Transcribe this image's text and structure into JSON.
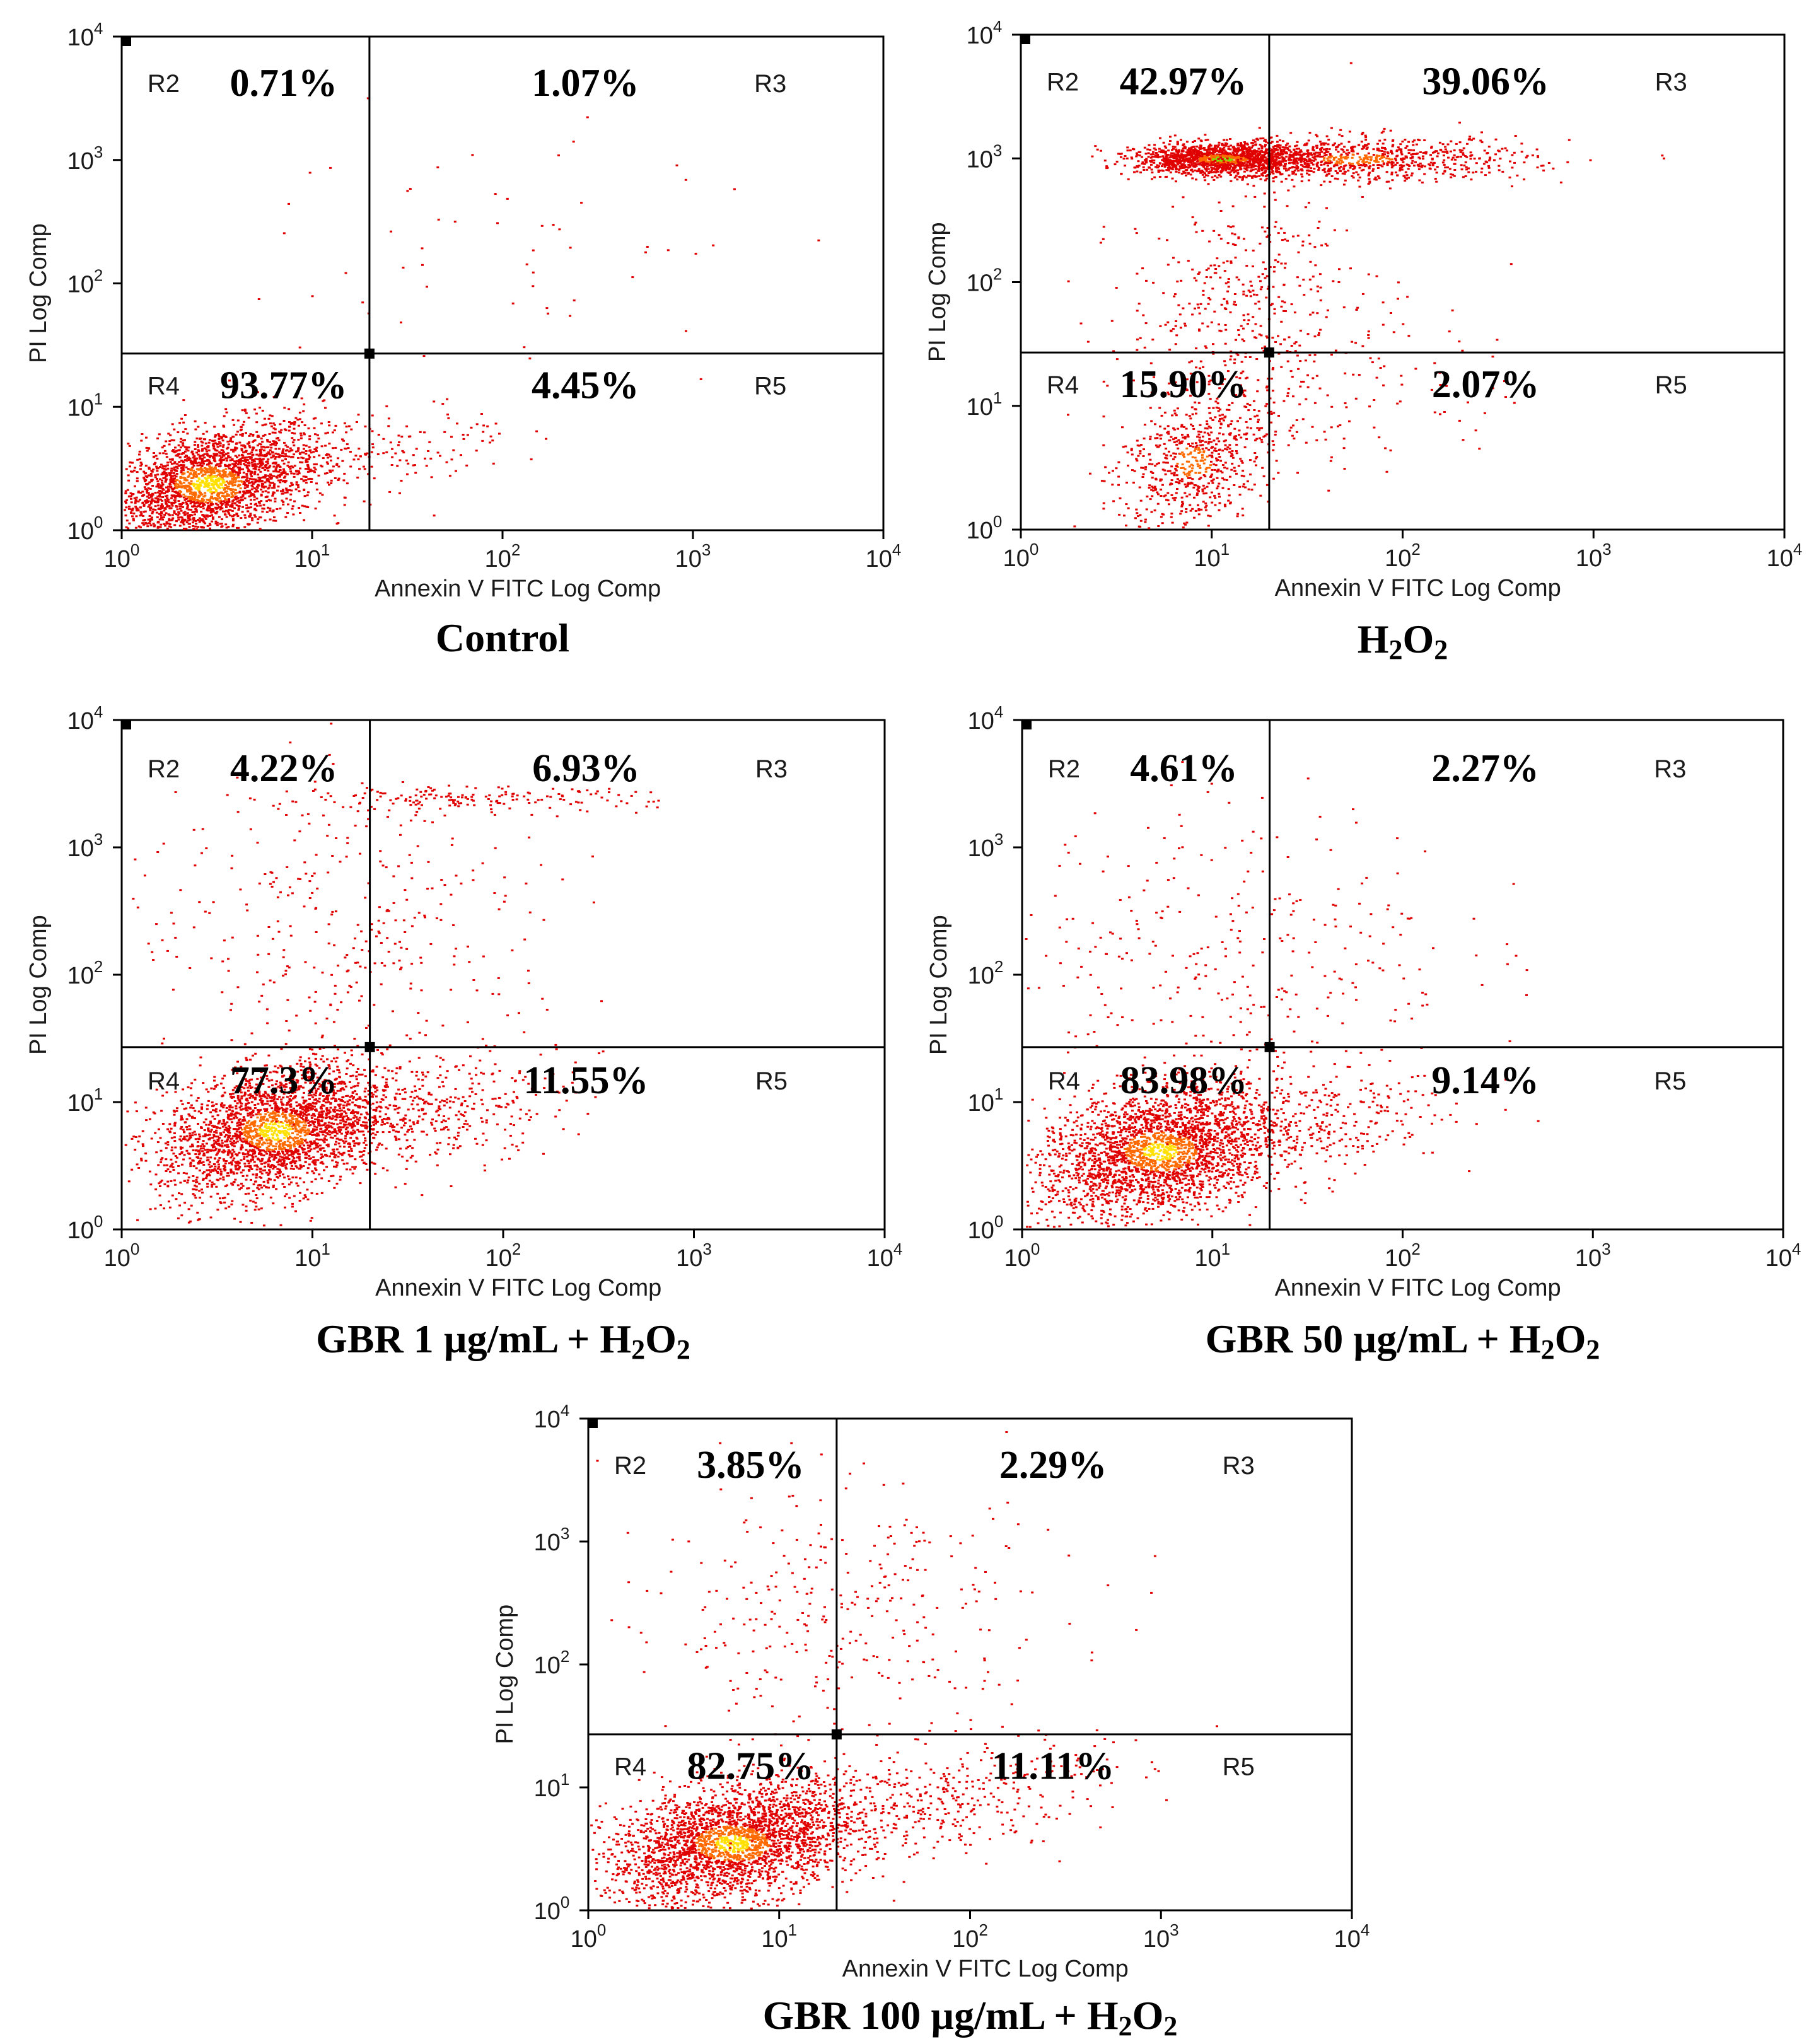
{
  "chart_data": [
    {
      "type": "scatter",
      "title": "Control",
      "xlabel": "Annexin V FITC Log Comp",
      "ylabel": "PI Log Comp",
      "xscale": "log",
      "yscale": "log",
      "xlim": [
        1,
        10000
      ],
      "ylim": [
        1,
        10000
      ],
      "x_ticks": [
        {
          "base": "10",
          "exp": "0"
        },
        {
          "base": "10",
          "exp": "1"
        },
        {
          "base": "10",
          "exp": "2"
        },
        {
          "base": "10",
          "exp": "3"
        },
        {
          "base": "10",
          "exp": "4"
        }
      ],
      "y_ticks": [
        {
          "base": "10",
          "exp": "0"
        },
        {
          "base": "10",
          "exp": "1"
        },
        {
          "base": "10",
          "exp": "2"
        },
        {
          "base": "10",
          "exp": "3"
        },
        {
          "base": "10",
          "exp": "4"
        }
      ],
      "gate": {
        "x": 20,
        "y": 27
      },
      "quadrants": [
        {
          "region": "R2",
          "percent": "0.71%"
        },
        {
          "region": "R3",
          "percent": "1.07%"
        },
        {
          "region": "R4",
          "percent": "93.77%"
        },
        {
          "region": "R5",
          "percent": "4.45%"
        }
      ]
    },
    {
      "type": "scatter",
      "title": "H2O2",
      "xlabel": "Annexin V FITC Log Comp",
      "ylabel": "PI Log Comp",
      "xscale": "log",
      "yscale": "log",
      "xlim": [
        1,
        10000
      ],
      "ylim": [
        1,
        10000
      ],
      "x_ticks": [
        {
          "base": "10",
          "exp": "0"
        },
        {
          "base": "10",
          "exp": "1"
        },
        {
          "base": "10",
          "exp": "2"
        },
        {
          "base": "10",
          "exp": "3"
        },
        {
          "base": "10",
          "exp": "4"
        }
      ],
      "y_ticks": [
        {
          "base": "10",
          "exp": "0"
        },
        {
          "base": "10",
          "exp": "1"
        },
        {
          "base": "10",
          "exp": "2"
        },
        {
          "base": "10",
          "exp": "3"
        },
        {
          "base": "10",
          "exp": "4"
        }
      ],
      "gate": {
        "x": 20,
        "y": 27
      },
      "quadrants": [
        {
          "region": "R2",
          "percent": "42.97%"
        },
        {
          "region": "R3",
          "percent": "39.06%"
        },
        {
          "region": "R4",
          "percent": "15.90%"
        },
        {
          "region": "R5",
          "percent": "2.07%"
        }
      ]
    },
    {
      "type": "scatter",
      "title": "GBR 1 µg/mL + H2O2",
      "xlabel": "Annexin V FITC Log Comp",
      "ylabel": "PI Log Comp",
      "xscale": "log",
      "yscale": "log",
      "xlim": [
        1,
        10000
      ],
      "ylim": [
        1,
        10000
      ],
      "x_ticks": [
        {
          "base": "10",
          "exp": "0"
        },
        {
          "base": "10",
          "exp": "1"
        },
        {
          "base": "10",
          "exp": "2"
        },
        {
          "base": "10",
          "exp": "3"
        },
        {
          "base": "10",
          "exp": "4"
        }
      ],
      "y_ticks": [
        {
          "base": "10",
          "exp": "0"
        },
        {
          "base": "10",
          "exp": "1"
        },
        {
          "base": "10",
          "exp": "2"
        },
        {
          "base": "10",
          "exp": "3"
        },
        {
          "base": "10",
          "exp": "4"
        }
      ],
      "gate": {
        "x": 20,
        "y": 27
      },
      "quadrants": [
        {
          "region": "R2",
          "percent": "4.22%"
        },
        {
          "region": "R3",
          "percent": "6.93%"
        },
        {
          "region": "R4",
          "percent": "77.3%"
        },
        {
          "region": "R5",
          "percent": "11.55%"
        }
      ]
    },
    {
      "type": "scatter",
      "title": "GBR 50 µg/mL + H2O2",
      "xlabel": "Annexin V FITC Log Comp",
      "ylabel": "PI Log Comp",
      "xscale": "log",
      "yscale": "log",
      "xlim": [
        1,
        10000
      ],
      "ylim": [
        1,
        10000
      ],
      "x_ticks": [
        {
          "base": "10",
          "exp": "0"
        },
        {
          "base": "10",
          "exp": "1"
        },
        {
          "base": "10",
          "exp": "2"
        },
        {
          "base": "10",
          "exp": "3"
        },
        {
          "base": "10",
          "exp": "4"
        }
      ],
      "y_ticks": [
        {
          "base": "10",
          "exp": "0"
        },
        {
          "base": "10",
          "exp": "1"
        },
        {
          "base": "10",
          "exp": "2"
        },
        {
          "base": "10",
          "exp": "3"
        },
        {
          "base": "10",
          "exp": "4"
        }
      ],
      "gate": {
        "x": 20,
        "y": 27
      },
      "quadrants": [
        {
          "region": "R2",
          "percent": "4.61%"
        },
        {
          "region": "R3",
          "percent": "2.27%"
        },
        {
          "region": "R4",
          "percent": "83.98%"
        },
        {
          "region": "R5",
          "percent": "9.14%"
        }
      ]
    },
    {
      "type": "scatter",
      "title": "GBR 100 µg/mL + H2O2",
      "xlabel": "Annexin V FITC Log Comp",
      "ylabel": "PI Log Comp",
      "xscale": "log",
      "yscale": "log",
      "xlim": [
        1,
        10000
      ],
      "ylim": [
        1,
        10000
      ],
      "x_ticks": [
        {
          "base": "10",
          "exp": "0"
        },
        {
          "base": "10",
          "exp": "1"
        },
        {
          "base": "10",
          "exp": "2"
        },
        {
          "base": "10",
          "exp": "3"
        },
        {
          "base": "10",
          "exp": "4"
        }
      ],
      "y_ticks": [
        {
          "base": "10",
          "exp": "0"
        },
        {
          "base": "10",
          "exp": "1"
        },
        {
          "base": "10",
          "exp": "2"
        },
        {
          "base": "10",
          "exp": "3"
        },
        {
          "base": "10",
          "exp": "4"
        }
      ],
      "gate": {
        "x": 20,
        "y": 27
      },
      "quadrants": [
        {
          "region": "R2",
          "percent": "3.85%"
        },
        {
          "region": "R3",
          "percent": "2.29%"
        },
        {
          "region": "R4",
          "percent": "82.75%"
        },
        {
          "region": "R5",
          "percent": "11.11%"
        }
      ]
    }
  ],
  "colors": {
    "axis": "#000000",
    "dot_low": "#e00000",
    "dot_mid": "#ff6a00",
    "dot_high": "#ffe000",
    "dot_peak": "#7de000"
  }
}
